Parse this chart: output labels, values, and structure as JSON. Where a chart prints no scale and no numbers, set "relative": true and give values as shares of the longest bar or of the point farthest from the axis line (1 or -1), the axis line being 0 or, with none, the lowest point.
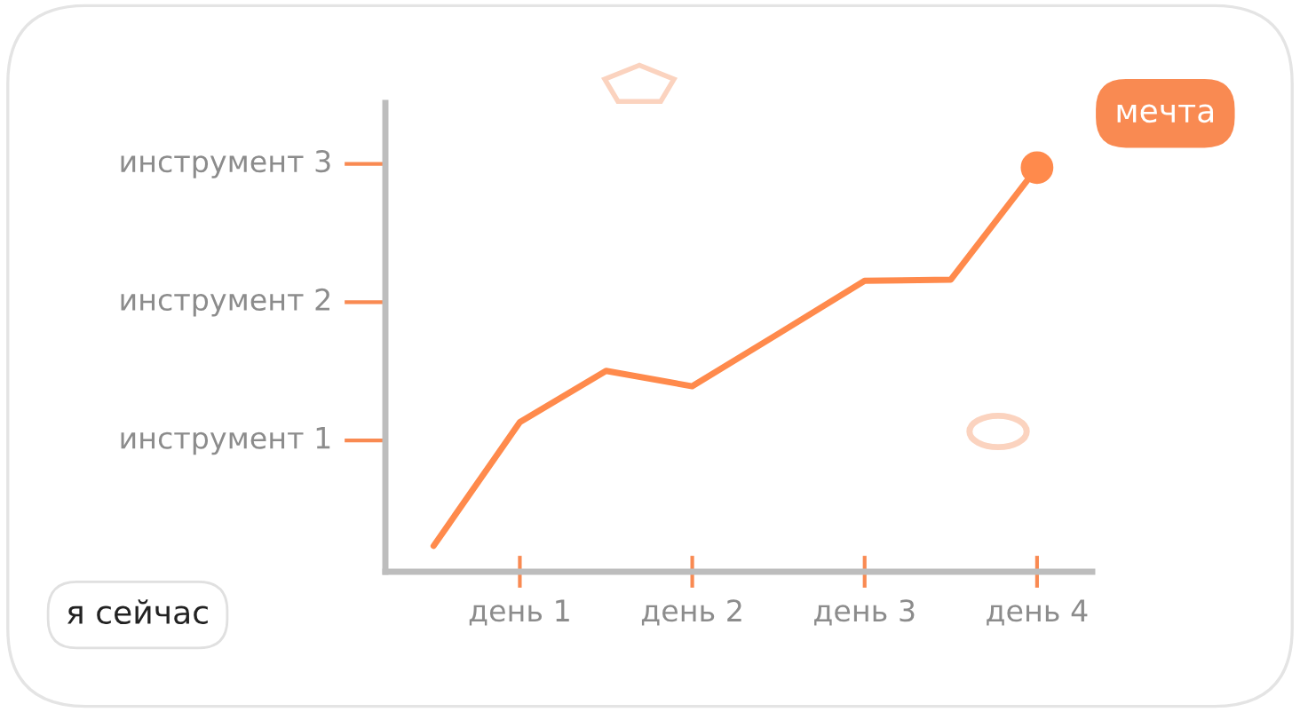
{
  "chart_data": {
    "type": "line",
    "relative": true,
    "categories": [
      null,
      "день 1",
      null,
      "день 2",
      null,
      "день 3",
      null,
      "день 4"
    ],
    "series": [
      {
        "color": "#ff8a4c",
        "values": [
          0.064,
          0.37,
          0.497,
          0.459,
          0.589,
          0.72,
          0.723,
          1
        ]
      },
      {
        "type": "scatter",
        "color": "#ff8a4c",
        "values": [
          null,
          null,
          null,
          null,
          null,
          null,
          null,
          1
        ]
      }
    ],
    "annotations": [
      "инструмент 1",
      "инструмент 2",
      "инструмент 3",
      "я сейчас",
      "мечта"
    ],
    "grid": false,
    "legend": false
  }
}
